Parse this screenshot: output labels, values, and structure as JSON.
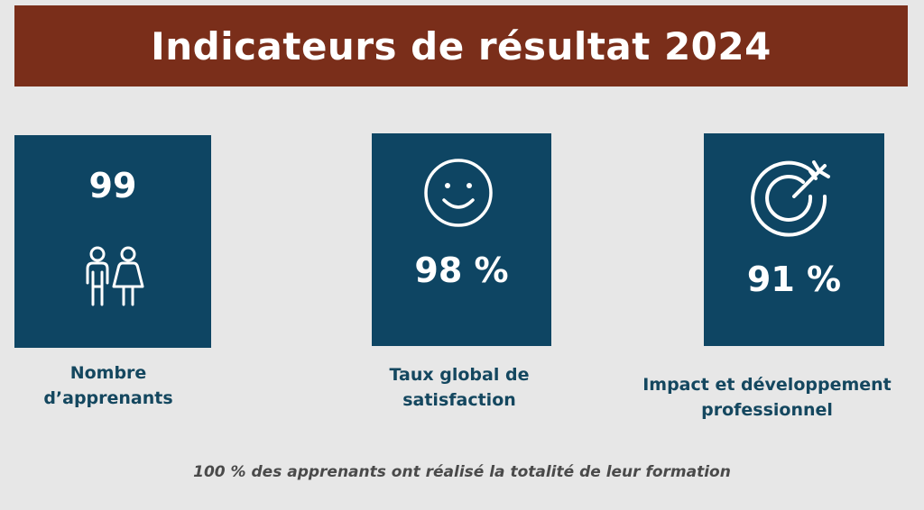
{
  "header": {
    "title": "Indicateurs de résultat 2024"
  },
  "cards": [
    {
      "value": "99",
      "label_line1": "Nombre",
      "label_line2": "d’apprenants",
      "icon": "people-icon"
    },
    {
      "value": "98 %",
      "label_line1": "Taux global de",
      "label_line2": "satisfaction",
      "icon": "smiley-icon"
    },
    {
      "value": "91 %",
      "label_line1": "Impact et développement",
      "label_line2": "professionnel",
      "icon": "target-icon"
    }
  ],
  "footer": {
    "text": "100 % des apprenants ont réalisé la totalité de leur formation"
  },
  "colors": {
    "banner": "#7a2e1a",
    "card": "#0e4563",
    "label": "#14475f",
    "background": "#e7e7e7"
  }
}
